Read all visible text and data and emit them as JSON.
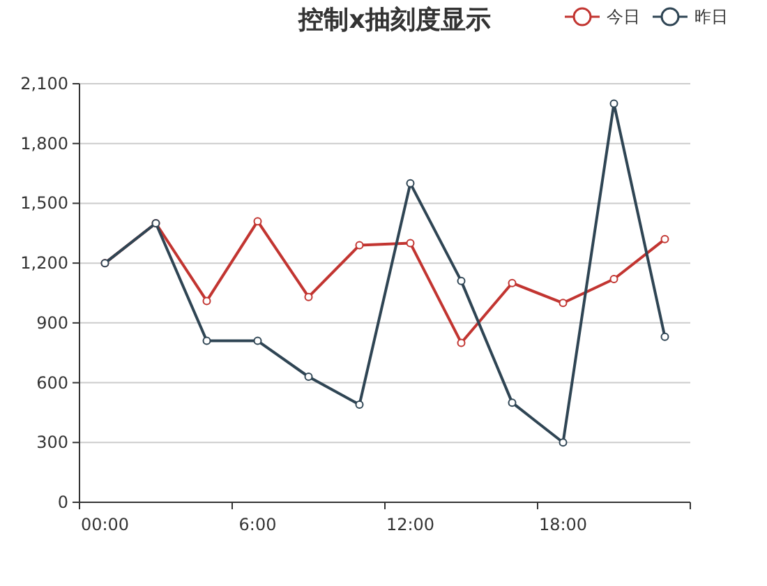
{
  "chart_data": {
    "type": "line",
    "title": "控制x抽刻度显示",
    "categories": [
      "00:00",
      null,
      null,
      "6:00",
      null,
      null,
      "12:00",
      null,
      null,
      "18:00",
      null,
      null
    ],
    "series": [
      {
        "name": "今日",
        "color": "#c23531",
        "values": [
          1200,
          1400,
          1010,
          1410,
          1030,
          1290,
          1300,
          800,
          1100,
          1000,
          1120,
          1320
        ]
      },
      {
        "name": "昨日",
        "color": "#2f4554",
        "values": [
          1200,
          1400,
          810,
          810,
          630,
          490,
          1600,
          1110,
          500,
          300,
          2000,
          830
        ]
      }
    ],
    "ylim": [
      0,
      2100
    ],
    "yticks": [
      {
        "value": 0,
        "label": "0"
      },
      {
        "value": 300,
        "label": "300"
      },
      {
        "value": 600,
        "label": "600"
      },
      {
        "value": 900,
        "label": "900"
      },
      {
        "value": 1200,
        "label": "1,200"
      },
      {
        "value": 1500,
        "label": "1,500"
      },
      {
        "value": 1800,
        "label": "1,800"
      },
      {
        "value": 2100,
        "label": "2,100"
      }
    ],
    "grid": "y",
    "legend": "top right",
    "marker": "circle",
    "line_style": "solid"
  }
}
